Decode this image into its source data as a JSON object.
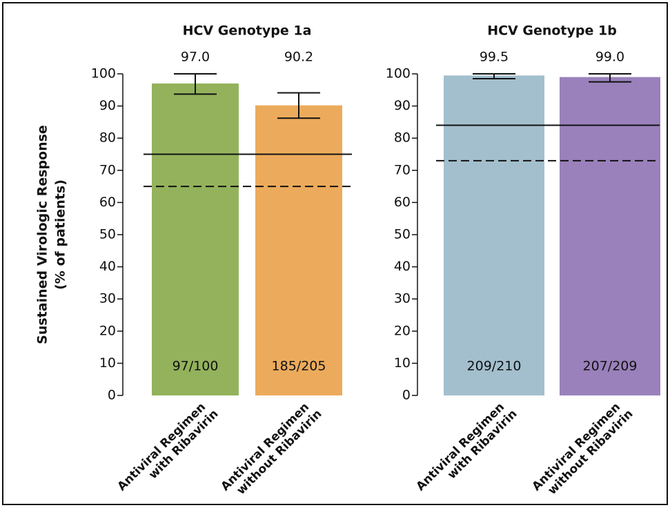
{
  "chart_data": [
    {
      "type": "bar",
      "title": "HCV Genotype 1a",
      "ylabel": [
        "Sustained Virologic Response",
        "(% of patients)"
      ],
      "categories": [
        [
          "Antiviral Regimen",
          "with Ribavirin"
        ],
        [
          "Antiviral Regimen",
          "without Ribavirin"
        ]
      ],
      "values": [
        97.0,
        90.2
      ],
      "value_labels": [
        "97.0",
        "90.2"
      ],
      "ci_low": [
        93.7,
        86.2
      ],
      "ci_high": [
        100,
        94.1
      ],
      "bar_labels": [
        "97/100",
        "185/205"
      ],
      "colors": [
        "#93b25b",
        "#ecab5c"
      ],
      "reference_lines": [
        {
          "value": 75,
          "style": "solid"
        },
        {
          "value": 65,
          "style": "dashed"
        }
      ],
      "ylim": [
        0,
        100
      ],
      "yticks": [
        0,
        10,
        20,
        30,
        40,
        50,
        60,
        70,
        80,
        90,
        100
      ]
    },
    {
      "type": "bar",
      "title": "HCV Genotype 1b",
      "categories": [
        [
          "Antiviral Regimen",
          "with Ribavirin"
        ],
        [
          "Antiviral Regimen",
          "without Ribavirin"
        ]
      ],
      "values": [
        99.5,
        99.0
      ],
      "value_labels": [
        "99.5",
        "99.0"
      ],
      "ci_low": [
        98.5,
        97.5
      ],
      "ci_high": [
        100,
        100
      ],
      "bar_labels": [
        "209/210",
        "207/209"
      ],
      "colors": [
        "#a3bfcd",
        "#9a81bb"
      ],
      "reference_lines": [
        {
          "value": 84,
          "style": "solid"
        },
        {
          "value": 73,
          "style": "dashed"
        }
      ],
      "ylim": [
        0,
        100
      ],
      "yticks": [
        0,
        10,
        20,
        30,
        40,
        50,
        60,
        70,
        80,
        90,
        100
      ]
    }
  ]
}
